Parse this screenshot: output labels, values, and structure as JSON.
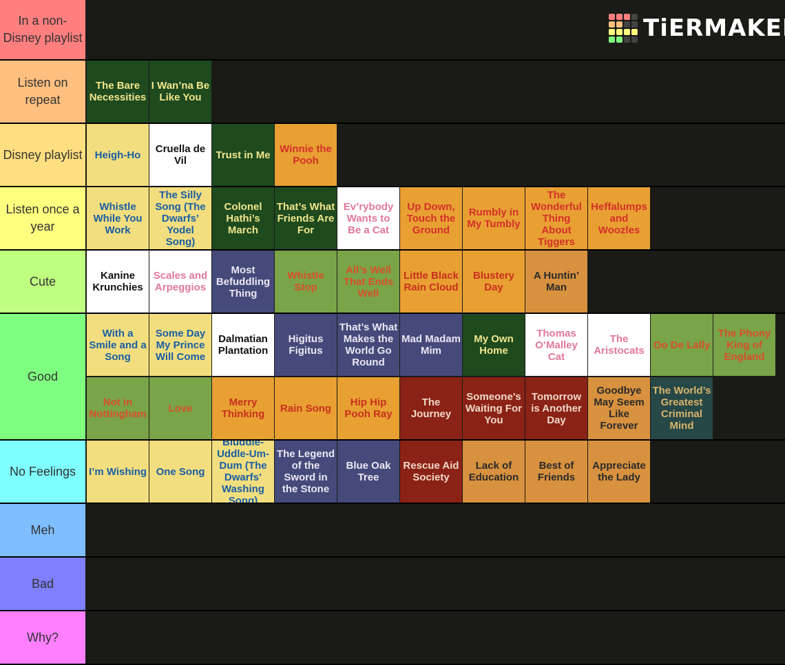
{
  "logo": "TiERMAKER",
  "tiers": [
    {
      "label": "In a non-Disney playlist",
      "color": "#ff7f7f",
      "items": []
    },
    {
      "label": "Listen on repeat",
      "color": "#ffbf7f",
      "items": [
        {
          "label": "The Bare Necessities",
          "bg": "#1e4a1e",
          "fg": "#f0e68c"
        },
        {
          "label": "I Wan’na Be Like You",
          "bg": "#1e4a1e",
          "fg": "#f0e68c"
        }
      ]
    },
    {
      "label": "Disney playlist",
      "color": "#ffdf7f",
      "items": [
        {
          "label": "Heigh-Ho",
          "bg": "#f2de7e",
          "fg": "#1a5ea6"
        },
        {
          "label": "Cruella de Vil",
          "bg": "#ffffff",
          "fg": "#111111"
        },
        {
          "label": "Trust in Me",
          "bg": "#1e4a1e",
          "fg": "#f0e68c"
        },
        {
          "label": "Winnie the Pooh",
          "bg": "#e8a032",
          "fg": "#d4302a"
        }
      ]
    },
    {
      "label": "Listen once a year",
      "color": "#ffff7f",
      "items": [
        {
          "label": "Whistle While You Work",
          "bg": "#f2de7e",
          "fg": "#1a5ea6"
        },
        {
          "label": "The Silly Song (The Dwarfs’ Yodel Song)",
          "bg": "#f2de7e",
          "fg": "#1a5ea6"
        },
        {
          "label": "Colonel Hathi’s March",
          "bg": "#1e4a1e",
          "fg": "#f0e68c"
        },
        {
          "label": "That’s What Friends Are For",
          "bg": "#1e4a1e",
          "fg": "#f0e68c"
        },
        {
          "label": "Ev’rybody Wants to Be a Cat",
          "bg": "#ffffff",
          "fg": "#e0789a"
        },
        {
          "label": "Up Down, Touch the Ground",
          "bg": "#e8a032",
          "fg": "#d4302a"
        },
        {
          "label": "Rumbly in My Tumbly",
          "bg": "#e8a032",
          "fg": "#d4302a"
        },
        {
          "label": "The Wonderful Thing About Tiggers",
          "bg": "#e8a032",
          "fg": "#d4302a"
        },
        {
          "label": "Heffalumps and Woozles",
          "bg": "#e8a032",
          "fg": "#d4302a"
        }
      ]
    },
    {
      "label": "Cute",
      "color": "#bfff7f",
      "items": [
        {
          "label": "Kanine Krunchies",
          "bg": "#ffffff",
          "fg": "#111111"
        },
        {
          "label": "Scales and Arpeggios",
          "bg": "#ffffff",
          "fg": "#e0789a"
        },
        {
          "label": "Most Befuddling Thing",
          "bg": "#464a7a",
          "fg": "#e8e8f4"
        },
        {
          "label": "Whistle Stop",
          "bg": "#7aa448",
          "fg": "#d8502a"
        },
        {
          "label": "All’s Well That Ends Well",
          "bg": "#7aa448",
          "fg": "#d8502a"
        },
        {
          "label": "Little Black Rain Cloud",
          "bg": "#e8a032",
          "fg": "#c8301e"
        },
        {
          "label": "Blustery Day",
          "bg": "#e8a032",
          "fg": "#c8301e"
        },
        {
          "label": "A Huntin’ Man",
          "bg": "#d8913e",
          "fg": "#2a2a2a"
        }
      ]
    },
    {
      "label": "Good",
      "color": "#7fff7f",
      "items": [
        {
          "label": "With a Smile and a Song",
          "bg": "#f2de7e",
          "fg": "#1a5ea6"
        },
        {
          "label": "Some Day My Prince Will Come",
          "bg": "#f2de7e",
          "fg": "#1a5ea6"
        },
        {
          "label": "Dalmatian Plantation",
          "bg": "#ffffff",
          "fg": "#111111"
        },
        {
          "label": "Higitus Figitus",
          "bg": "#464a7a",
          "fg": "#e8e8f4"
        },
        {
          "label": "That’s What Makes the World Go Round",
          "bg": "#464a7a",
          "fg": "#e8e8f4"
        },
        {
          "label": "Mad Madam Mim",
          "bg": "#464a7a",
          "fg": "#e8e8f4"
        },
        {
          "label": "My Own Home",
          "bg": "#1e4a1e",
          "fg": "#f0e68c"
        },
        {
          "label": "Thomas O’Malley Cat",
          "bg": "#ffffff",
          "fg": "#e0789a"
        },
        {
          "label": "The Aristocats",
          "bg": "#ffffff",
          "fg": "#e0789a"
        },
        {
          "label": "Oo De Lally",
          "bg": "#7aa448",
          "fg": "#d8502a"
        },
        {
          "label": "The Phony King of England",
          "bg": "#7aa448",
          "fg": "#d8502a"
        },
        {
          "label": "Not in Nottingham",
          "bg": "#7aa448",
          "fg": "#d8502a"
        },
        {
          "label": "Love",
          "bg": "#7aa448",
          "fg": "#d8502a"
        },
        {
          "label": "Merry Thinking",
          "bg": "#e8a032",
          "fg": "#c8301e"
        },
        {
          "label": "Rain Song",
          "bg": "#e8a032",
          "fg": "#c8301e"
        },
        {
          "label": "Hip Hip Pooh Ray",
          "bg": "#e8a032",
          "fg": "#c8301e"
        },
        {
          "label": "The Journey",
          "bg": "#8a2216",
          "fg": "#f2d8c8"
        },
        {
          "label": "Someone’s Waiting For You",
          "bg": "#8a2216",
          "fg": "#f2d8c8"
        },
        {
          "label": "Tomorrow is Another Day",
          "bg": "#8a2216",
          "fg": "#f2d8c8"
        },
        {
          "label": "Goodbye May Seem Like Forever",
          "bg": "#d8913e",
          "fg": "#2a2a2a"
        },
        {
          "label": "The World’s Greatest Criminal Mind",
          "bg": "#264846",
          "fg": "#d8b46c"
        }
      ]
    },
    {
      "label": "No Feelings",
      "color": "#7fffff",
      "items": [
        {
          "label": "I’m Wishing",
          "bg": "#f2de7e",
          "fg": "#1a5ea6"
        },
        {
          "label": "One Song",
          "bg": "#f2de7e",
          "fg": "#1a5ea6"
        },
        {
          "label": "Bluddle-Uddle-Um-Dum (The Dwarfs’ Washing Song)",
          "bg": "#f2de7e",
          "fg": "#1a5ea6"
        },
        {
          "label": "The Legend of the Sword in the Stone",
          "bg": "#464a7a",
          "fg": "#e8e8f4"
        },
        {
          "label": "Blue Oak Tree",
          "bg": "#464a7a",
          "fg": "#e8e8f4"
        },
        {
          "label": "Rescue Aid Society",
          "bg": "#8a2216",
          "fg": "#f2d8c8"
        },
        {
          "label": "Lack of Education",
          "bg": "#d8913e",
          "fg": "#2a2a2a"
        },
        {
          "label": "Best of Friends",
          "bg": "#d8913e",
          "fg": "#2a2a2a"
        },
        {
          "label": "Appreciate the Lady",
          "bg": "#d8913e",
          "fg": "#2a2a2a"
        }
      ]
    },
    {
      "label": "Meh",
      "color": "#7fbfff",
      "items": []
    },
    {
      "label": "Bad",
      "color": "#7f7fff",
      "items": []
    },
    {
      "label": "Why?",
      "color": "#ff7fff",
      "items": []
    }
  ]
}
